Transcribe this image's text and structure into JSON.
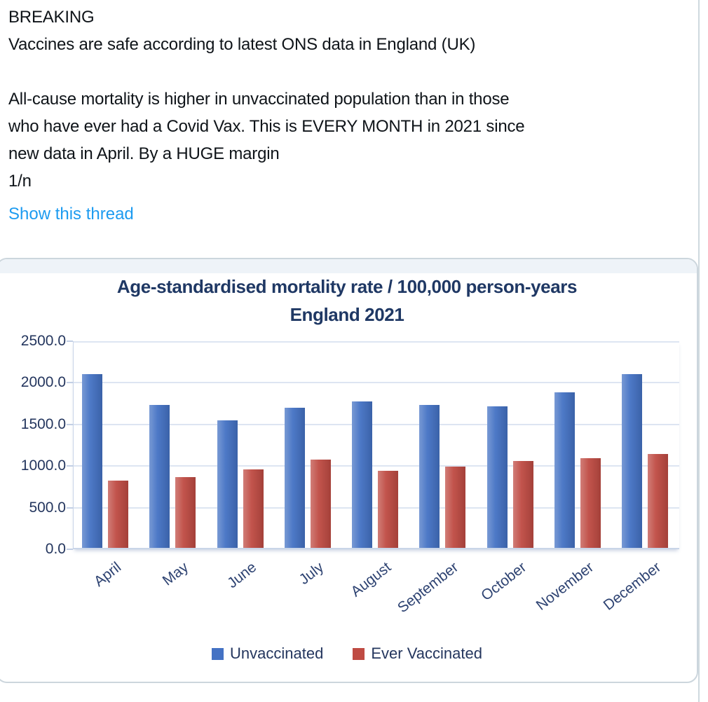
{
  "tweet": {
    "text": "BREAKING\nVaccines are safe according to latest ONS data in England (UK)\n\nAll-cause mortality is higher in unvaccinated population than in those\nwho have ever had a Covid Vax. This is EVERY MONTH in 2021 since\nnew data in April. By a HUGE margin\n1/n",
    "show_thread_label": "Show this thread",
    "link_color": "#1d9bf0",
    "text_color": "#0f1419"
  },
  "chart_data": {
    "type": "bar",
    "title": "Age-standardised mortality rate / 100,000 person-years",
    "subtitle": "England 2021",
    "title_color": "#1f3864",
    "categories": [
      "April",
      "May",
      "June",
      "July",
      "August",
      "September",
      "October",
      "November",
      "December"
    ],
    "series": [
      {
        "name": "Unvaccinated",
        "color": "#4472c4",
        "values": [
          2090,
          1720,
          1530,
          1680,
          1760,
          1720,
          1700,
          1870,
          2090
        ]
      },
      {
        "name": "Ever Vaccinated",
        "color": "#bf4b43",
        "values": [
          810,
          850,
          940,
          1060,
          925,
          975,
          1040,
          1075,
          1130
        ]
      }
    ],
    "ylim": [
      0,
      2500
    ],
    "ytick_step": 500,
    "ytick_labels": [
      "0.0",
      "500.0",
      "1000.0",
      "1500.0",
      "2000.0",
      "2500.0"
    ],
    "grid": true,
    "legend_position": "bottom"
  }
}
